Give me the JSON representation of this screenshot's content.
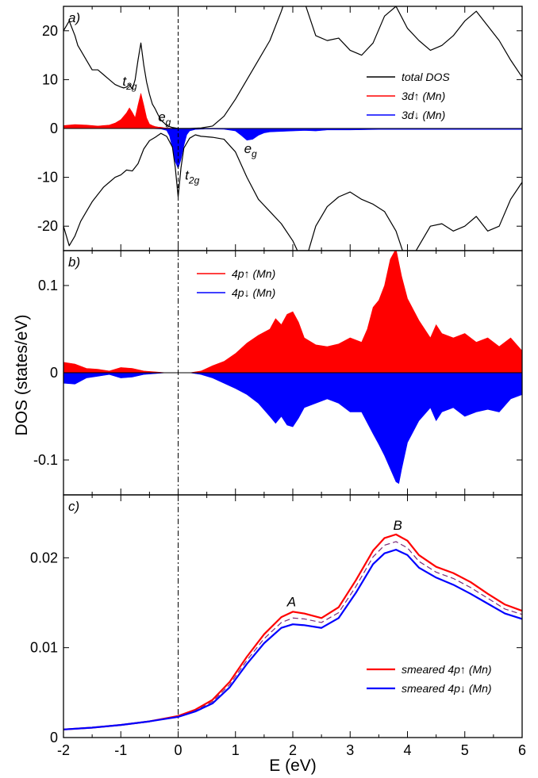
{
  "figure": {
    "ylabel": "DOS (states/eV)",
    "xlabel": "E (eV)"
  },
  "chart_data": [
    {
      "id": "a",
      "panel_label": "a)",
      "type": "area",
      "xlim": [
        -2,
        6
      ],
      "ylim": [
        -25,
        25
      ],
      "yticks": [
        -20,
        -10,
        0,
        10,
        20
      ],
      "ytick_labels": [
        "-20",
        "-10",
        "0",
        "10",
        "20"
      ],
      "vline_x": 0,
      "legend_position": "upper-right",
      "annotations": [
        {
          "name": "t2g-up-label",
          "base": "t",
          "sub": "2g",
          "x": -0.97,
          "y": 8.8
        },
        {
          "name": "eg-up-label",
          "base": "e",
          "sub": "g",
          "x": -0.35,
          "y": 1.5
        },
        {
          "name": "t2g-down-label",
          "base": "t",
          "sub": "2g",
          "x": 0.12,
          "y": -10.5
        },
        {
          "name": "eg-down-label",
          "base": "e",
          "sub": "g",
          "x": 1.15,
          "y": -5.0
        }
      ],
      "series": [
        {
          "name": "total DOS",
          "kind": "line",
          "color": "#000000",
          "width": 1.2,
          "x": [
            -2.0,
            -1.9,
            -1.8,
            -1.75,
            -1.7,
            -1.6,
            -1.5,
            -1.4,
            -1.3,
            -1.2,
            -1.1,
            -1.0,
            -0.95,
            -0.9,
            -0.85,
            -0.8,
            -0.75,
            -0.7,
            -0.65,
            -0.6,
            -0.55,
            -0.5,
            -0.45,
            -0.4,
            -0.35,
            -0.3,
            -0.25,
            -0.2,
            -0.1,
            0.0,
            0.2,
            0.4,
            0.6,
            0.8,
            1.0,
            1.2,
            1.4,
            1.6,
            1.8,
            2.0,
            2.2,
            2.4,
            2.6,
            2.8,
            3.0,
            3.2,
            3.4,
            3.6,
            3.8,
            4.0,
            4.2,
            4.4,
            4.6,
            4.8,
            5.0,
            5.2,
            5.4,
            5.6,
            5.8,
            6.0
          ],
          "y": [
            20,
            22,
            19,
            17,
            16,
            14,
            12,
            12,
            11,
            10,
            9,
            8.5,
            8.3,
            8.5,
            9,
            8,
            10,
            14,
            17.5,
            13,
            9.5,
            7,
            5,
            4,
            2.8,
            1.7,
            1.2,
            0.6,
            0.2,
            0,
            0,
            0.1,
            0.5,
            2.5,
            6,
            10,
            14,
            18,
            24,
            31,
            26,
            19,
            18,
            18.5,
            16,
            15,
            17.5,
            23,
            25,
            20.5,
            18,
            16,
            17,
            19,
            22,
            24,
            21,
            18,
            14,
            10.5
          ]
        },
        {
          "name": "3d↑ (Mn)",
          "kind": "area",
          "color": "#ff0000",
          "width": 1.0,
          "x": [
            -2.0,
            -1.8,
            -1.6,
            -1.4,
            -1.2,
            -1.1,
            -1.0,
            -0.9,
            -0.85,
            -0.8,
            -0.75,
            -0.7,
            -0.65,
            -0.6,
            -0.55,
            -0.5,
            -0.45,
            -0.4,
            -0.35,
            -0.3,
            -0.25,
            -0.2,
            -0.1,
            0.0,
            0.3,
            0.6,
            6.0
          ],
          "y": [
            0.6,
            0.8,
            0.7,
            0.5,
            0.7,
            1.1,
            1.8,
            3.2,
            4.2,
            3.3,
            2.2,
            4.8,
            7.2,
            4.8,
            2.2,
            0.9,
            0.6,
            0.4,
            0.3,
            0.25,
            0.15,
            0.1,
            0.05,
            0,
            0,
            0,
            0
          ]
        },
        {
          "name": "3d↓ (Mn)",
          "kind": "area",
          "color": "#0000ff",
          "width": 1.0,
          "x": [
            -2.0,
            -0.5,
            -0.3,
            -0.2,
            -0.15,
            -0.1,
            -0.05,
            0.0,
            0.05,
            0.1,
            0.15,
            0.2,
            0.3,
            0.5,
            0.8,
            1.0,
            1.1,
            1.2,
            1.3,
            1.4,
            1.5,
            1.6,
            1.8,
            2.0,
            2.2,
            2.4,
            2.6,
            3.0,
            3.5,
            4.0,
            4.5,
            5.0,
            5.5,
            6.0
          ],
          "y": [
            0,
            0,
            -0.1,
            -0.4,
            -1.5,
            -4,
            -6.8,
            -8.2,
            -6.3,
            -3.5,
            -1.3,
            -0.5,
            -0.2,
            -0.1,
            -0.15,
            -0.5,
            -1.4,
            -2.4,
            -2.2,
            -1.4,
            -0.9,
            -0.7,
            -0.6,
            -0.5,
            -0.4,
            -0.5,
            -0.3,
            -0.3,
            -0.2,
            -0.2,
            -0.2,
            -0.2,
            -0.2,
            -0.2
          ]
        },
        {
          "name": "total DOS (spin down)",
          "kind": "line",
          "color": "#000000",
          "width": 1.2,
          "x": [
            -2.0,
            -1.9,
            -1.8,
            -1.7,
            -1.6,
            -1.5,
            -1.4,
            -1.3,
            -1.2,
            -1.1,
            -1.0,
            -0.9,
            -0.8,
            -0.7,
            -0.6,
            -0.5,
            -0.4,
            -0.3,
            -0.2,
            -0.1,
            -0.05,
            0.0,
            0.05,
            0.1,
            0.2,
            0.3,
            0.4,
            0.6,
            0.8,
            1.0,
            1.2,
            1.4,
            1.6,
            1.8,
            2.0,
            2.2,
            2.4,
            2.6,
            2.8,
            3.0,
            3.2,
            3.4,
            3.6,
            3.8,
            4.0,
            4.2,
            4.4,
            4.6,
            4.8,
            5.0,
            5.2,
            5.4,
            5.6,
            5.8,
            6.0
          ],
          "y": [
            -20,
            -24,
            -22,
            -19,
            -17,
            -15,
            -13.5,
            -12,
            -11,
            -10,
            -9.5,
            -8.5,
            -8.7,
            -7.2,
            -4.2,
            -2.5,
            -1.8,
            -1.0,
            -1.6,
            -3.8,
            -8,
            -14,
            -8,
            -4,
            -2,
            -1.3,
            -1.6,
            -1.8,
            -2.2,
            -4.8,
            -10,
            -14.5,
            -17,
            -19.5,
            -23,
            -28,
            -20,
            -16,
            -14,
            -13,
            -14.5,
            -15.5,
            -17,
            -21,
            -28,
            -24,
            -20,
            -19.5,
            -21,
            -20,
            -18,
            -21,
            -20,
            -14.5,
            -11
          ]
        }
      ]
    },
    {
      "id": "b",
      "panel_label": "b)",
      "type": "area",
      "xlim": [
        -2,
        6
      ],
      "ylim": [
        -0.14,
        0.14
      ],
      "yticks": [
        -0.1,
        0,
        0.1
      ],
      "ytick_labels": [
        "-0.1",
        "0",
        "0.1"
      ],
      "vline_x": 0,
      "legend_position": "upper-left",
      "series": [
        {
          "name": "4p↑ (Mn)",
          "kind": "area",
          "color": "#ff0000",
          "width": 1.0,
          "x": [
            -2.0,
            -1.8,
            -1.6,
            -1.4,
            -1.2,
            -1.0,
            -0.8,
            -0.6,
            -0.4,
            -0.2,
            0.0,
            0.2,
            0.4,
            0.6,
            0.8,
            1.0,
            1.2,
            1.4,
            1.6,
            1.7,
            1.8,
            1.9,
            2.0,
            2.1,
            2.2,
            2.4,
            2.6,
            2.8,
            3.0,
            3.2,
            3.3,
            3.4,
            3.5,
            3.6,
            3.7,
            3.8,
            3.9,
            4.0,
            4.2,
            4.4,
            4.5,
            4.6,
            4.8,
            5.0,
            5.2,
            5.4,
            5.6,
            5.8,
            6.0
          ],
          "y": [
            0.012,
            0.01,
            0.005,
            0.004,
            0.002,
            0.006,
            0.005,
            0.002,
            0.001,
            0.0,
            0.0,
            0.0,
            0.002,
            0.008,
            0.013,
            0.022,
            0.034,
            0.043,
            0.05,
            0.062,
            0.055,
            0.067,
            0.07,
            0.058,
            0.04,
            0.032,
            0.03,
            0.033,
            0.04,
            0.035,
            0.05,
            0.075,
            0.083,
            0.1,
            0.13,
            0.142,
            0.11,
            0.085,
            0.06,
            0.04,
            0.055,
            0.045,
            0.04,
            0.045,
            0.035,
            0.04,
            0.03,
            0.04,
            0.025
          ]
        },
        {
          "name": "4p↓ (Mn)",
          "kind": "area",
          "color": "#0000ff",
          "width": 1.0,
          "x": [
            -2.0,
            -1.8,
            -1.6,
            -1.4,
            -1.2,
            -1.0,
            -0.8,
            -0.6,
            -0.4,
            -0.2,
            0.0,
            0.2,
            0.4,
            0.6,
            0.8,
            1.0,
            1.2,
            1.4,
            1.6,
            1.7,
            1.8,
            1.9,
            2.0,
            2.1,
            2.2,
            2.4,
            2.6,
            2.8,
            3.0,
            3.2,
            3.4,
            3.5,
            3.6,
            3.7,
            3.8,
            3.85,
            3.9,
            4.0,
            4.2,
            4.4,
            4.5,
            4.6,
            4.8,
            5.0,
            5.2,
            5.4,
            5.6,
            5.8,
            6.0
          ],
          "y": [
            -0.012,
            -0.013,
            -0.006,
            -0.004,
            -0.002,
            -0.006,
            -0.005,
            -0.002,
            -0.001,
            0.0,
            0.0,
            0.0,
            -0.002,
            -0.006,
            -0.012,
            -0.018,
            -0.025,
            -0.035,
            -0.05,
            -0.058,
            -0.05,
            -0.06,
            -0.062,
            -0.052,
            -0.04,
            -0.035,
            -0.03,
            -0.035,
            -0.045,
            -0.045,
            -0.07,
            -0.082,
            -0.095,
            -0.11,
            -0.125,
            -0.127,
            -0.11,
            -0.08,
            -0.055,
            -0.04,
            -0.055,
            -0.045,
            -0.04,
            -0.05,
            -0.045,
            -0.042,
            -0.045,
            -0.03,
            -0.025
          ]
        }
      ]
    },
    {
      "id": "c",
      "panel_label": "c)",
      "type": "line",
      "xlim": [
        -2,
        6
      ],
      "ylim": [
        0,
        0.027
      ],
      "yticks": [
        0,
        0.01,
        0.02
      ],
      "ytick_labels": [
        "0",
        "0.01",
        "0.02"
      ],
      "xticks": [
        -2,
        -1,
        0,
        1,
        2,
        3,
        4,
        5,
        6
      ],
      "xtick_labels": [
        "-2",
        "-1",
        "0",
        "1",
        "2",
        "3",
        "4",
        "5",
        "6"
      ],
      "vline_x": 0,
      "legend_position": "lower-right",
      "annotations": [
        {
          "name": "peak-a-label",
          "text": "A",
          "x": 1.9,
          "y": 0.0146
        },
        {
          "name": "peak-b-label",
          "text": "B",
          "x": 3.75,
          "y": 0.0231
        }
      ],
      "series": [
        {
          "name": "smeared 4p↑ (Mn)",
          "kind": "line",
          "color": "#ff0000",
          "width": 2.2,
          "x": [
            -2.0,
            -1.5,
            -1.0,
            -0.5,
            0.0,
            0.3,
            0.6,
            0.9,
            1.2,
            1.5,
            1.8,
            2.0,
            2.2,
            2.5,
            2.8,
            3.1,
            3.4,
            3.6,
            3.8,
            4.0,
            4.2,
            4.5,
            4.8,
            5.1,
            5.4,
            5.7,
            6.0
          ],
          "y": [
            0.0009,
            0.0011,
            0.0014,
            0.0018,
            0.0024,
            0.0031,
            0.0042,
            0.0062,
            0.009,
            0.0115,
            0.0134,
            0.014,
            0.0138,
            0.0133,
            0.0145,
            0.0175,
            0.0208,
            0.0222,
            0.0226,
            0.0219,
            0.0203,
            0.019,
            0.0183,
            0.0173,
            0.016,
            0.0148,
            0.0141
          ]
        },
        {
          "name": "average (dashed)",
          "kind": "dashed",
          "color": "#7a2a7a",
          "width": 1.2,
          "x": [
            -2.0,
            -1.5,
            -1.0,
            -0.5,
            0.0,
            0.3,
            0.6,
            0.9,
            1.2,
            1.5,
            1.8,
            2.0,
            2.2,
            2.5,
            2.8,
            3.1,
            3.4,
            3.6,
            3.8,
            4.0,
            4.2,
            4.5,
            4.8,
            5.1,
            5.4,
            5.7,
            6.0
          ],
          "y": [
            0.0009,
            0.0011,
            0.0014,
            0.0018,
            0.0023,
            0.003,
            0.004,
            0.0059,
            0.0086,
            0.011,
            0.0128,
            0.0133,
            0.0132,
            0.0128,
            0.0139,
            0.0168,
            0.0201,
            0.0214,
            0.0218,
            0.0211,
            0.0196,
            0.0184,
            0.0177,
            0.0167,
            0.0155,
            0.0143,
            0.0137
          ]
        },
        {
          "name": "smeared 4p↓ (Mn)",
          "kind": "line",
          "color": "#0000ff",
          "width": 2.2,
          "x": [
            -2.0,
            -1.5,
            -1.0,
            -0.5,
            0.0,
            0.3,
            0.6,
            0.9,
            1.2,
            1.5,
            1.8,
            2.0,
            2.2,
            2.5,
            2.8,
            3.1,
            3.4,
            3.6,
            3.8,
            4.0,
            4.2,
            4.5,
            4.8,
            5.1,
            5.4,
            5.7,
            6.0
          ],
          "y": [
            0.0009,
            0.0011,
            0.0014,
            0.0018,
            0.0023,
            0.0029,
            0.0038,
            0.0056,
            0.0082,
            0.0105,
            0.0122,
            0.0126,
            0.0125,
            0.0122,
            0.0133,
            0.0161,
            0.0193,
            0.0205,
            0.0209,
            0.0203,
            0.0189,
            0.0178,
            0.017,
            0.016,
            0.0149,
            0.0138,
            0.0132
          ]
        }
      ]
    }
  ]
}
